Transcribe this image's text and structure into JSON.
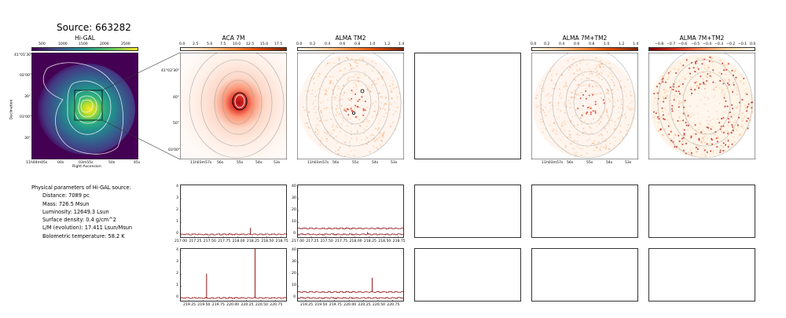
{
  "header": {
    "title": "Source: 663282"
  },
  "panels": {
    "higal": {
      "title": "Hi-GAL",
      "xlabel": "Right Ascension",
      "ylabel": "Declination",
      "xticks": [
        "11h04m05s",
        "00s",
        "03m55s",
        "50s",
        "45s"
      ],
      "yticks": [
        "41°01'30\"",
        "02'00\"",
        "30\"",
        "03'00\"",
        "30\""
      ],
      "cbar_ticks": [
        "500",
        "1000",
        "1500",
        "2000",
        "2500"
      ]
    },
    "aca7m": {
      "title": "ACA 7M",
      "xticks": [
        "11h03m57s",
        "56s",
        "55s",
        "54s",
        "53s"
      ],
      "yticks": [
        "41°02'30\"",
        "40\"",
        "50\"",
        "03'00\""
      ],
      "cbar_ticks": [
        "0.0",
        "2.5",
        "5.0",
        "7.5",
        "10.0",
        "12.5",
        "15.0",
        "17.5"
      ]
    },
    "almatm2": {
      "title": "ALMA TM2",
      "xticks": [
        "11h03m57s",
        "56s",
        "55s",
        "54s",
        "53s"
      ],
      "cbar_ticks": [
        "0.0",
        "0.2",
        "0.4",
        "0.6",
        "0.8",
        "1.0",
        "1.2",
        "1.4"
      ]
    },
    "alma7mtm2": {
      "title": "ALMA 7M+TM2",
      "xticks": [
        "11h03m57s",
        "56s",
        "55s",
        "54s",
        "53s"
      ],
      "cbar_ticks": [
        "0.0",
        "0.2",
        "0.4",
        "0.6",
        "0.8",
        "1.0",
        "1.2",
        "1.4"
      ]
    },
    "alma7mtm2_b": {
      "title": "ALMA 7M+TM2",
      "cbar_ticks": [
        "−0.8",
        "−0.7",
        "−0.6",
        "−0.5",
        "−0.4",
        "−0.3",
        "−0.2",
        "−0.1",
        "0.0"
      ]
    }
  },
  "params": {
    "heading": "Physical parameters of Hi-GAL source:",
    "rows": [
      "Distance: 7089 pc",
      "Mass: 726.5 Msun",
      "Luminosity: 12649.3 Lsun",
      "Surface density: 0.4 g/cm^2",
      "L/M (evolution): 17.411 Lsun/Msun",
      "Bolometric temperature: 58.2 K"
    ]
  },
  "chart_data": [
    {
      "type": "line",
      "panel": "spectrum-aca7m-upper",
      "xlim": [
        217.0,
        218.85
      ],
      "ylim": [
        -0.3,
        4.2
      ],
      "xticks": [
        "217.00",
        "217.25",
        "217.50",
        "217.75",
        "218.00",
        "218.25",
        "218.50",
        "218.75"
      ],
      "yticks": [
        "0",
        "1",
        "2",
        "3",
        "4"
      ],
      "series": [
        {
          "baseline": 0.0,
          "peaks": [
            {
              "x": 218.22,
              "y": 0.55
            }
          ]
        }
      ]
    },
    {
      "type": "line",
      "panel": "spectrum-tm2-upper",
      "xlim": [
        217.0,
        218.85
      ],
      "ylim": [
        -3,
        42
      ],
      "xticks": [
        "217.00",
        "217.25",
        "217.50",
        "217.75",
        "218.00",
        "218.25",
        "218.50",
        "218.75"
      ],
      "yticks": [
        "0",
        "10",
        "20",
        "30",
        "40"
      ],
      "series": [
        {
          "baseline": 5.0,
          "peaks": []
        },
        {
          "baseline": 0.0,
          "peaks": [
            {
              "x": 218.22,
              "y": 2.0
            }
          ]
        }
      ]
    },
    {
      "type": "line",
      "panel": "spectrum-aca7m-lower",
      "xlim": [
        219.1,
        220.95
      ],
      "ylim": [
        -0.3,
        4.2
      ],
      "xticks": [
        "219.25",
        "219.50",
        "219.75",
        "220.00",
        "220.25",
        "220.50",
        "220.75"
      ],
      "yticks": [
        "0",
        "1",
        "2",
        "3",
        "4"
      ],
      "series": [
        {
          "baseline": 0.0,
          "peaks": [
            {
              "x": 219.56,
              "y": 2.05
            },
            {
              "x": 220.4,
              "y": 4.15
            }
          ]
        }
      ]
    },
    {
      "type": "line",
      "panel": "spectrum-tm2-lower",
      "xlim": [
        219.1,
        220.95
      ],
      "ylim": [
        -3,
        42
      ],
      "xticks": [
        "219.25",
        "219.50",
        "219.75",
        "220.00",
        "220.25",
        "220.50",
        "220.75"
      ],
      "yticks": [
        "0",
        "10",
        "20",
        "30",
        "40"
      ],
      "series": [
        {
          "baseline": 5.0,
          "peaks": [
            {
              "x": 220.4,
              "y": 17.0
            }
          ]
        },
        {
          "baseline": 0.0,
          "peaks": []
        }
      ]
    }
  ]
}
